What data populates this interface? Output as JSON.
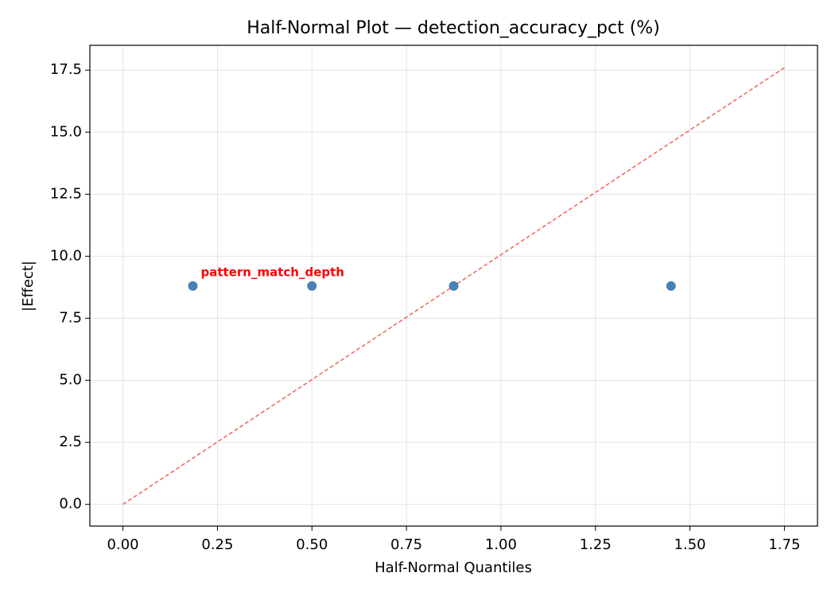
{
  "chart_data": {
    "type": "scatter",
    "title": "Half-Normal Plot — detection_accuracy_pct (%)",
    "x_label": "Half-Normal Quantiles",
    "y_label": "|Effect|",
    "series": [
      {
        "color": "#4682b4",
        "x": [
          0.185,
          0.5,
          0.875,
          1.45
        ],
        "values": [
          8.8,
          8.8,
          8.8,
          8.8
        ]
      }
    ],
    "reference_line": {
      "color": "#f0645a",
      "dashed": true,
      "x": [
        0,
        1.75
      ],
      "values": [
        0,
        17.6
      ]
    },
    "annotations": [
      {
        "text": "pattern_match_depth",
        "color": "#ff0000"
      }
    ],
    "xlim": [
      -0.0875,
      1.8375
    ],
    "ylim": [
      -0.875,
      18.5
    ],
    "xticks": [
      {
        "value": 0,
        "label": "0.00"
      },
      0.25,
      {
        "value": 0.5,
        "label": "0.50"
      },
      0.75,
      {
        "value": 1,
        "label": "1.00"
      },
      1.25,
      {
        "value": 1.5,
        "label": "1.50"
      },
      1.75
    ],
    "yticks": [
      {
        "value": 0,
        "label": "0.0"
      },
      2.5,
      {
        "value": 5,
        "label": "5.0"
      },
      7.5,
      {
        "value": 10,
        "label": "10.0"
      },
      12.5,
      {
        "value": 15,
        "label": "15.0"
      },
      17.5
    ],
    "grid": true
  }
}
